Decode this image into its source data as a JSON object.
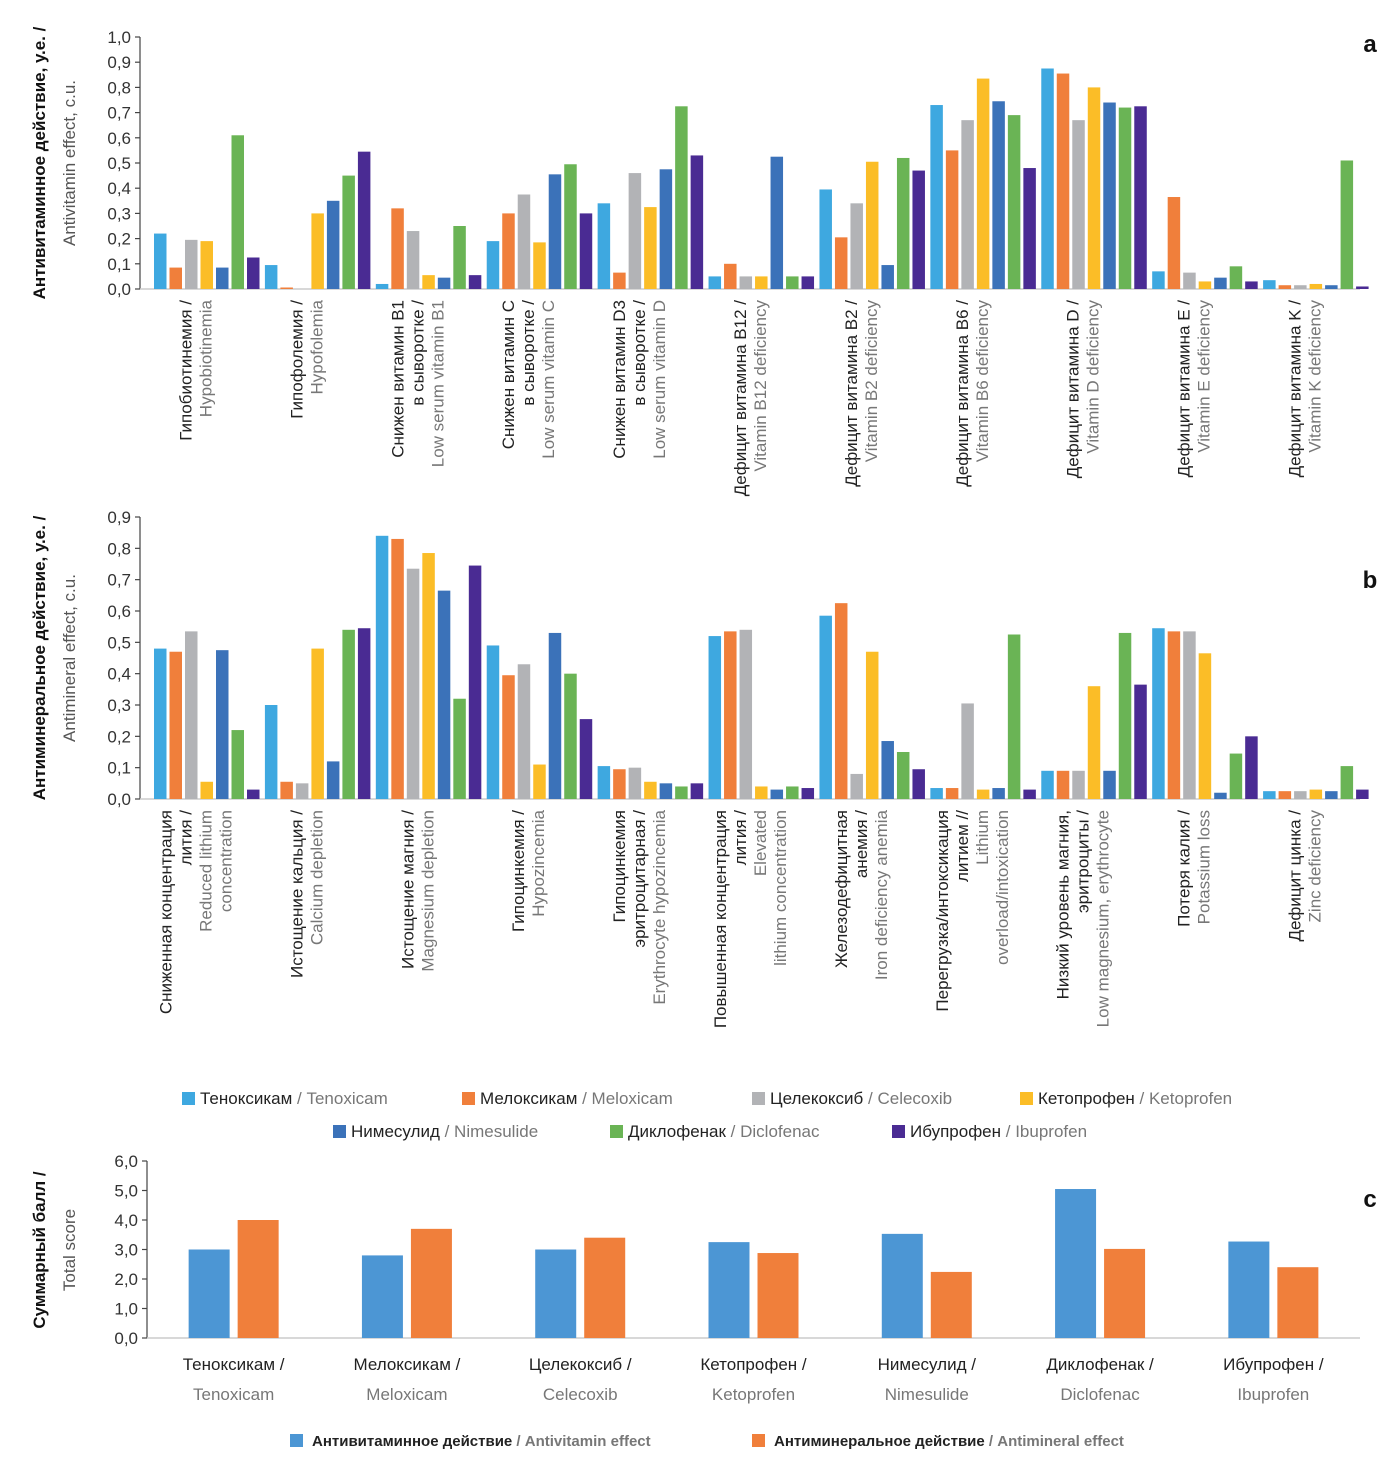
{
  "chart_data": [
    {
      "id": "a",
      "type": "bar",
      "panel_label": "a",
      "ylabel_ru": "Антивитаминное действие, у.е. /",
      "ylabel_en": "Antivitamin effect, c.u.",
      "ylim": [
        0,
        1.0
      ],
      "yticks": [
        "0,0",
        "0,1",
        "0,2",
        "0,3",
        "0,4",
        "0,5",
        "0,6",
        "0,7",
        "0,8",
        "0,9",
        "1,0"
      ],
      "categories": [
        {
          "ru": [
            "Гипобиотинемия /"
          ],
          "en": [
            "Hypobiotinemia"
          ]
        },
        {
          "ru": [
            "Гипофолемия /"
          ],
          "en": [
            "Hypofolemia"
          ]
        },
        {
          "ru": [
            "Снижен витамин B1",
            "в сыворотке /"
          ],
          "en": [
            "Low serum vitamin B1"
          ]
        },
        {
          "ru": [
            "Снижен витамин C",
            "в сыворотке /"
          ],
          "en": [
            "Low serum vitamin C"
          ]
        },
        {
          "ru": [
            "Снижен витамин D3",
            "в сыворотке /"
          ],
          "en": [
            "Low serum vitamin D"
          ]
        },
        {
          "ru": [
            "Дефицит витамина B12 /"
          ],
          "en": [
            "Vitamin B12 deficiency"
          ]
        },
        {
          "ru": [
            "Дефицит витамина B2 /"
          ],
          "en": [
            "Vitamin B2 deficiency"
          ]
        },
        {
          "ru": [
            "Дефицит витамина B6 /"
          ],
          "en": [
            "Vitamin B6 deficiency"
          ]
        },
        {
          "ru": [
            "Дефицит витамина D /"
          ],
          "en": [
            "Vitamin D deficiency"
          ]
        },
        {
          "ru": [
            "Дефицит витамина E /"
          ],
          "en": [
            "Vitamin E deficiency"
          ]
        },
        {
          "ru": [
            "Дефицит витамина K /"
          ],
          "en": [
            "Vitamin K deficiency"
          ]
        }
      ],
      "series": [
        {
          "name": "Теноксикам / Tenoxicam",
          "values": [
            0.22,
            0.095,
            0.02,
            0.19,
            0.34,
            0.05,
            0.395,
            0.73,
            0.875,
            0.07,
            0.035
          ]
        },
        {
          "name": "Мелоксикам / Meloxicam",
          "values": [
            0.085,
            0.005,
            0.32,
            0.3,
            0.065,
            0.1,
            0.205,
            0.55,
            0.855,
            0.365,
            0.015
          ]
        },
        {
          "name": "Целекоксиб / Celecoxib",
          "values": [
            0.195,
            0.0,
            0.23,
            0.375,
            0.46,
            0.05,
            0.34,
            0.67,
            0.67,
            0.065,
            0.015
          ]
        },
        {
          "name": "Кетопрофен / Ketoprofen",
          "values": [
            0.19,
            0.3,
            0.055,
            0.185,
            0.325,
            0.05,
            0.505,
            0.835,
            0.8,
            0.03,
            0.02
          ]
        },
        {
          "name": "Нимесулид / Nimesulide",
          "values": [
            0.085,
            0.35,
            0.045,
            0.455,
            0.475,
            0.525,
            0.095,
            0.745,
            0.74,
            0.045,
            0.015
          ]
        },
        {
          "name": "Диклофенак / Diclofenac",
          "values": [
            0.61,
            0.45,
            0.25,
            0.495,
            0.725,
            0.05,
            0.52,
            0.69,
            0.72,
            0.09,
            0.51
          ]
        },
        {
          "name": "Ибупрофен / Ibuprofen",
          "values": [
            0.125,
            0.545,
            0.055,
            0.3,
            0.53,
            0.05,
            0.47,
            0.48,
            0.725,
            0.03,
            0.01
          ]
        }
      ]
    },
    {
      "id": "b",
      "type": "bar",
      "panel_label": "b",
      "ylabel_ru": "Антиминеральное действие, у.е. /",
      "ylabel_en": "Antimineral effect, c.u.",
      "ylim": [
        0,
        0.9
      ],
      "yticks": [
        "0,0",
        "0,1",
        "0,2",
        "0,3",
        "0,4",
        "0,5",
        "0,6",
        "0,7",
        "0,8",
        "0,9"
      ],
      "categories": [
        {
          "ru": [
            "Сниженная концентрация",
            "лития /"
          ],
          "en": [
            "Reduced lithium",
            "concentration"
          ]
        },
        {
          "ru": [
            "Истощение кальция /"
          ],
          "en": [
            "Calcium depletion"
          ]
        },
        {
          "ru": [
            "Истощение магния /"
          ],
          "en": [
            "Magnesium depletion"
          ]
        },
        {
          "ru": [
            "Гипоцинкемия /"
          ],
          "en": [
            "Hypozincemia"
          ]
        },
        {
          "ru": [
            "Гипоцинкемия",
            "эритроцитарная /"
          ],
          "en": [
            "Erythrocyte hypozincemia"
          ]
        },
        {
          "ru": [
            "Повышенная концентрация",
            "лития /"
          ],
          "en": [
            "Elevated",
            "lithium concentration"
          ]
        },
        {
          "ru": [
            "Железодефицитная",
            "анемия /"
          ],
          "en": [
            "Iron deficiency anemia"
          ]
        },
        {
          "ru": [
            "Перегрузка/интоксикация",
            "литием //"
          ],
          "en": [
            "Lithium",
            "overload/intoxication"
          ]
        },
        {
          "ru": [
            "Низкий уровень магния,",
            "эритроциты /"
          ],
          "en": [
            "Low magnesium, erythrocyte"
          ]
        },
        {
          "ru": [
            "Потеря калия /"
          ],
          "en": [
            "Potassium loss"
          ]
        },
        {
          "ru": [
            "Дефицит цинка /"
          ],
          "en": [
            "Zinc deficiency"
          ]
        }
      ],
      "series": [
        {
          "name": "Теноксикам / Tenoxicam",
          "values": [
            0.48,
            0.3,
            0.84,
            0.49,
            0.105,
            0.52,
            0.585,
            0.035,
            0.09,
            0.545,
            0.025
          ]
        },
        {
          "name": "Мелоксикам / Meloxicam",
          "values": [
            0.47,
            0.055,
            0.83,
            0.395,
            0.095,
            0.535,
            0.625,
            0.035,
            0.09,
            0.535,
            0.025
          ]
        },
        {
          "name": "Целекоксиб / Celecoxib",
          "values": [
            0.535,
            0.05,
            0.735,
            0.43,
            0.1,
            0.54,
            0.08,
            0.305,
            0.09,
            0.535,
            0.025
          ]
        },
        {
          "name": "Кетопрофен / Ketoprofen",
          "values": [
            0.055,
            0.48,
            0.785,
            0.11,
            0.055,
            0.04,
            0.47,
            0.03,
            0.36,
            0.465,
            0.03
          ]
        },
        {
          "name": "Нимесулид / Nimesulide",
          "values": [
            0.475,
            0.12,
            0.665,
            0.53,
            0.05,
            0.03,
            0.185,
            0.035,
            0.09,
            0.02,
            0.025
          ]
        },
        {
          "name": "Диклофенак / Diclofenac",
          "values": [
            0.22,
            0.54,
            0.32,
            0.4,
            0.04,
            0.04,
            0.15,
            0.525,
            0.53,
            0.145,
            0.105
          ]
        },
        {
          "name": "Ибупрофен / Ibuprofen",
          "values": [
            0.03,
            0.545,
            0.745,
            0.255,
            0.05,
            0.035,
            0.095,
            0.03,
            0.365,
            0.2,
            0.03
          ]
        }
      ]
    },
    {
      "id": "c",
      "type": "bar",
      "panel_label": "c",
      "ylabel_ru": "Суммарный балл /",
      "ylabel_en": "Total score",
      "ylim": [
        0,
        6.0
      ],
      "yticks": [
        "0,0",
        "1,0",
        "2,0",
        "3,0",
        "4,0",
        "5,0",
        "6,0"
      ],
      "categories": [
        {
          "ru": "Теноксикам /",
          "en": "Tenoxicam"
        },
        {
          "ru": "Мелоксикам /",
          "en": "Meloxicam"
        },
        {
          "ru": "Целекоксиб /",
          "en": "Celecoxib"
        },
        {
          "ru": "Кетопрофен /",
          "en": "Ketoprofen"
        },
        {
          "ru": "Нимесулид /",
          "en": "Nimesulide"
        },
        {
          "ru": "Диклофенак /",
          "en": "Diclofenac"
        },
        {
          "ru": "Ибупрофен /",
          "en": "Ibuprofen"
        }
      ],
      "series": [
        {
          "name": "Антивитаминное действие / Antivitamin effect",
          "values": [
            3.0,
            2.8,
            3.0,
            3.25,
            3.53,
            5.05,
            3.27
          ]
        },
        {
          "name": "Антиминеральное действие / Antimineral effect",
          "values": [
            4.0,
            3.7,
            3.4,
            2.88,
            2.24,
            3.02,
            2.4
          ]
        }
      ]
    }
  ],
  "legend_drugs": [
    {
      "ru": "Теноксикам",
      "en": "Tenoxicam",
      "color": "#3ea8e0"
    },
    {
      "ru": "Мелоксикам",
      "en": "Meloxicam",
      "color": "#f07f3b"
    },
    {
      "ru": "Целекоксиб",
      "en": "Celecoxib",
      "color": "#b2b3b6"
    },
    {
      "ru": "Кетопрофен",
      "en": "Ketoprofen",
      "color": "#fbbd27"
    },
    {
      "ru": "Нимесулид",
      "en": "Nimesulide",
      "color": "#3b72b9"
    },
    {
      "ru": "Диклофенак",
      "en": "Diclofenac",
      "color": "#6ab455"
    },
    {
      "ru": "Ибупрофен",
      "en": "Ibuprofen",
      "color": "#4a2b93"
    }
  ],
  "legend_effects": [
    {
      "ru": "Антивитаминное действие",
      "en": "Antivitamin effect",
      "color": "#4c96d4"
    },
    {
      "ru": "Антиминеральное действие",
      "en": "Antimineral effect",
      "color": "#f07f3b"
    }
  ],
  "separator": " / "
}
